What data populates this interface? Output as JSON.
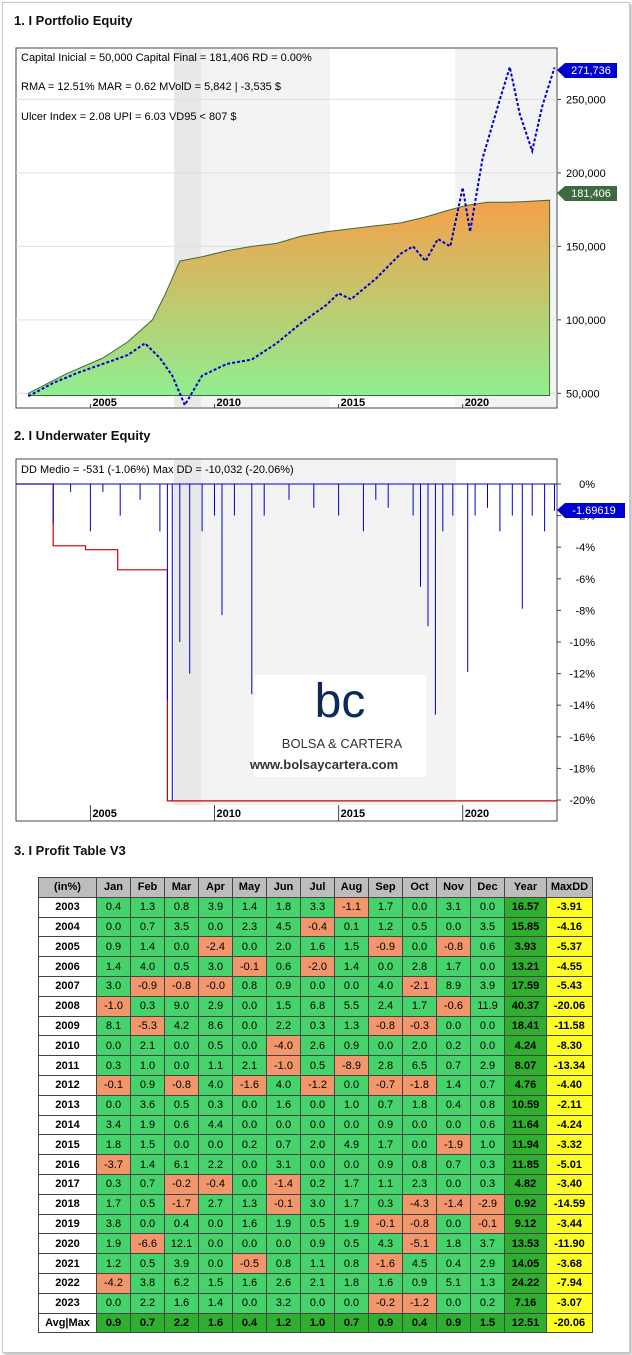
{
  "sections": {
    "equity_title": "1. I Portfolio Equity",
    "underwater_title": "2. I Underwater Equity",
    "table_title": "3. I Profit Table V3"
  },
  "equity_chart": {
    "stats_line1": "Capital Inicial = 50,000  Capital Final = 181,406   RD = 0.00%",
    "stats_line2": "RMA = 12.51%   MAR = 0.62   MVolD = 5,842 | -3,535 $",
    "stats_line3": "Ulcer Index = 2.08   UPI = 6.03   VD95 < 807 $",
    "y_ticks": [
      "250,000",
      "200,000",
      "150,000",
      "100,000",
      "50,000"
    ],
    "x_ticks": [
      "2005",
      "2010",
      "2015",
      "2020"
    ],
    "label_benchmark": "271,736",
    "label_equity": "181,406",
    "colors": {
      "benchmark": "#0000cc",
      "equity_top": "#f5a04a",
      "equity_bottom": "#90ee90",
      "label_equity_bg": "#3e6b3e",
      "label_benchmark_bg": "#0000cc"
    }
  },
  "underwater_chart": {
    "stats": "DD Medio = -531 (-1.06%)          Max DD = -10,032 (-20.06%)",
    "y_ticks": [
      "0%",
      "-2%",
      "-4%",
      "-6%",
      "-8%",
      "-10%",
      "-12%",
      "-14%",
      "-16%",
      "-18%",
      "-20%"
    ],
    "x_ticks": [
      "2005",
      "2010",
      "2015",
      "2020"
    ],
    "current_label": "-1.69619",
    "logo_mark": "bc",
    "logo_name": "BOLSA & CARTERA",
    "logo_url": "www.bolsaycartera.com"
  },
  "chart_data": [
    {
      "type": "line",
      "title": "1. I Portfolio Equity",
      "x_range": [
        2002,
        2023.8
      ],
      "ylim": [
        40000,
        285000
      ],
      "series": [
        {
          "values_note": "",
          "x": [
            2002.5,
            2004,
            2005.5,
            2006.5,
            2007.5,
            2008,
            2008.6,
            2009.5,
            2010.5,
            2011.5,
            2012.5,
            2013.5,
            2014.5,
            2015.5,
            2016.5,
            2017.5,
            2018.5,
            2019.5,
            2020.2,
            2021,
            2021.8,
            2022.5,
            2023.5
          ],
          "values": [
            50000,
            63000,
            74000,
            85000,
            100000,
            117000,
            140000,
            143000,
            147000,
            150000,
            152000,
            157000,
            160000,
            162000,
            164000,
            166000,
            170000,
            175000,
            178000,
            180000,
            180000,
            180500,
            181406
          ]
        },
        {
          "x": [
            2002.5,
            2003.5,
            2004.5,
            2005.5,
            2006.5,
            2007.2,
            2007.8,
            2008.3,
            2008.8,
            2009.5,
            2010.5,
            2011.5,
            2012.5,
            2013.5,
            2014.5,
            2015,
            2015.5,
            2016.5,
            2017.5,
            2018,
            2018.5,
            2019,
            2019.5,
            2020,
            2020.3,
            2020.8,
            2021.5,
            2021.9,
            2022.3,
            2022.8,
            2023.2,
            2023.7
          ],
          "values": [
            48000,
            57000,
            64000,
            70000,
            76000,
            84000,
            74000,
            62000,
            42000,
            62000,
            70000,
            73000,
            84000,
            98000,
            110000,
            118000,
            114000,
            128000,
            145000,
            150000,
            140000,
            155000,
            150000,
            190000,
            160000,
            210000,
            250000,
            272000,
            240000,
            215000,
            245000,
            271736
          ]
        }
      ]
    },
    {
      "type": "area",
      "title": "2. I Underwater Equity",
      "x_range": [
        2002,
        2023.8
      ],
      "ylim": [
        -20,
        0
      ],
      "series": [
        {
          "x": [
            2002.5,
            2003.5,
            2004.2,
            2005,
            2005.5,
            2006.2,
            2007,
            2007.8,
            2008.1,
            2008.3,
            2008.6,
            2009,
            2009.5,
            2010,
            2010.3,
            2010.8,
            2011.5,
            2012,
            2013,
            2014,
            2015,
            2016,
            2016.5,
            2017,
            2018,
            2018.3,
            2018.6,
            2018.9,
            2019.2,
            2019.6,
            2020.2,
            2020.5,
            2021,
            2021.5,
            2022,
            2022.4,
            2022.8,
            2023.3,
            2023.7
          ],
          "values": [
            0,
            -2.5,
            -0.5,
            -3,
            -0.5,
            -2,
            -1,
            -3,
            -13.7,
            -20.06,
            -10,
            -12,
            -3,
            -2,
            -8.3,
            -2,
            -13.3,
            -2,
            -1,
            -1.5,
            -2,
            -3,
            -1,
            -1.5,
            -2,
            -6.5,
            -9,
            -14.6,
            -3,
            -2,
            -11.9,
            -2,
            -1.5,
            -3,
            -2,
            -7.9,
            -2,
            -3,
            -1.69619
          ]
        },
        {
          "x": [
            2002,
            2003.5,
            2003.5,
            2004.8,
            2004.8,
            2006.1,
            2006.1,
            2008.1,
            2008.1,
            2023.8
          ],
          "values": [
            0,
            0,
            -3.91,
            -3.91,
            -4.16,
            -4.16,
            -5.43,
            -5.43,
            -20.06,
            -20.06
          ]
        }
      ]
    },
    {
      "type": "table",
      "title": "3. I Profit Table V3",
      "columns": [
        "(in%)",
        "Jan",
        "Feb",
        "Mar",
        "Apr",
        "May",
        "Jun",
        "Jul",
        "Aug",
        "Sep",
        "Oct",
        "Nov",
        "Dec",
        "Year",
        "MaxDD"
      ],
      "rows": [
        [
          "2003",
          "0.4",
          "1.3",
          "0.8",
          "3.9",
          "1.4",
          "1.8",
          "3.3",
          "-1.1",
          "1.7",
          "0.0",
          "3.1",
          "0.0",
          "16.57",
          "-3.91"
        ],
        [
          "2004",
          "0.0",
          "0.7",
          "3.5",
          "0.0",
          "2.3",
          "4.5",
          "-0.4",
          "0.1",
          "1.2",
          "0.5",
          "0.0",
          "3.5",
          "15.85",
          "-4.16"
        ],
        [
          "2005",
          "0.9",
          "1.4",
          "0.0",
          "-2.4",
          "0.0",
          "2.0",
          "1.6",
          "1.5",
          "-0.9",
          "0.0",
          "-0.8",
          "0.6",
          "3.93",
          "-5.37"
        ],
        [
          "2006",
          "1.4",
          "4.0",
          "0.5",
          "3.0",
          "-0.1",
          "0.6",
          "-2.0",
          "1.4",
          "0.0",
          "2.8",
          "1.7",
          "0.0",
          "13.21",
          "-4.55"
        ],
        [
          "2007",
          "3.0",
          "-0.9",
          "-0.8",
          "-0.0",
          "0.8",
          "0.9",
          "0.0",
          "0.0",
          "4.0",
          "-2.1",
          "8.9",
          "3.9",
          "17.59",
          "-5.43"
        ],
        [
          "2008",
          "-1.0",
          "0.3",
          "9.0",
          "2.9",
          "0.0",
          "1.5",
          "6.8",
          "5.5",
          "2.4",
          "1.7",
          "-0.6",
          "11.9",
          "40.37",
          "-20.06"
        ],
        [
          "2009",
          "8.1",
          "-5.3",
          "4.2",
          "8.6",
          "0.0",
          "2.2",
          "0.3",
          "1.3",
          "-0.8",
          "-0.3",
          "0.0",
          "0.0",
          "18.41",
          "-11.58"
        ],
        [
          "2010",
          "0.0",
          "2.1",
          "0.0",
          "0.5",
          "0.0",
          "-4.0",
          "2.6",
          "0.9",
          "0.0",
          "2.0",
          "0.2",
          "0.0",
          "4.24",
          "-8.30"
        ],
        [
          "2011",
          "0.3",
          "1.0",
          "0.0",
          "1.1",
          "2.1",
          "-1.0",
          "0.5",
          "-8.9",
          "2.8",
          "6.5",
          "0.7",
          "2.9",
          "8.07",
          "-13.34"
        ],
        [
          "2012",
          "-0.1",
          "0.9",
          "-0.8",
          "4.0",
          "-1.6",
          "4.0",
          "-1.2",
          "0.0",
          "-0.7",
          "-1.8",
          "1.4",
          "0.7",
          "4.76",
          "-4.40"
        ],
        [
          "2013",
          "0.0",
          "3.6",
          "0.5",
          "0.3",
          "0.0",
          "1.6",
          "0.0",
          "1.0",
          "0.7",
          "1.8",
          "0.4",
          "0.8",
          "10.59",
          "-2.11"
        ],
        [
          "2014",
          "3.4",
          "1.9",
          "0.6",
          "4.4",
          "0.0",
          "0.0",
          "0.0",
          "0.0",
          "0.9",
          "0.0",
          "0.0",
          "0.6",
          "11.64",
          "-4.24"
        ],
        [
          "2015",
          "1.8",
          "1.5",
          "0.0",
          "0.0",
          "0.2",
          "0.7",
          "2.0",
          "4.9",
          "1.7",
          "0.0",
          "-1.9",
          "1.0",
          "11.94",
          "-3.32"
        ],
        [
          "2016",
          "-3.7",
          "1.4",
          "6.1",
          "2.2",
          "0.0",
          "3.1",
          "0.0",
          "0.0",
          "0.9",
          "0.8",
          "0.7",
          "0.3",
          "11.85",
          "-5.01"
        ],
        [
          "2017",
          "0.3",
          "0.7",
          "-0.2",
          "-0.4",
          "0.0",
          "-1.4",
          "0.2",
          "1.7",
          "1.1",
          "2.3",
          "0.0",
          "0.3",
          "4.82",
          "-3.40"
        ],
        [
          "2018",
          "1.7",
          "0.5",
          "-1.7",
          "2.7",
          "1.3",
          "-0.1",
          "3.0",
          "1.7",
          "0.3",
          "-4.3",
          "-1.4",
          "-2.9",
          "0.92",
          "-14.59"
        ],
        [
          "2019",
          "3.8",
          "0.0",
          "0.4",
          "0.0",
          "1.6",
          "1.9",
          "0.5",
          "1.9",
          "-0.1",
          "-0.8",
          "0.0",
          "-0.1",
          "9.12",
          "-3.44"
        ],
        [
          "2020",
          "1.9",
          "-6.6",
          "12.1",
          "0.0",
          "0.0",
          "0.0",
          "0.9",
          "0.5",
          "4.3",
          "-5.1",
          "1.8",
          "3.7",
          "13.53",
          "-11.90"
        ],
        [
          "2021",
          "1.2",
          "0.5",
          "3.9",
          "0.0",
          "-0.5",
          "0.8",
          "1.1",
          "0.8",
          "-1.6",
          "4.5",
          "0.4",
          "2.9",
          "14.05",
          "-3.68"
        ],
        [
          "2022",
          "-4.2",
          "3.8",
          "6.2",
          "1.5",
          "1.6",
          "2.6",
          "2.1",
          "1.8",
          "1.6",
          "0.9",
          "5.1",
          "1.3",
          "24.22",
          "-7.94"
        ],
        [
          "2023",
          "0.0",
          "2.2",
          "1.6",
          "1.4",
          "0.0",
          "3.2",
          "0.0",
          "0.0",
          "-0.2",
          "-1.2",
          "0.0",
          "0.2",
          "7.16",
          "-3.07"
        ]
      ],
      "footer": [
        "Avg|Max",
        "0.9",
        "0.7",
        "2.2",
        "1.6",
        "0.4",
        "1.2",
        "1.0",
        "0.7",
        "0.9",
        "0.4",
        "0.9",
        "1.5",
        "12.51",
        "-20.06"
      ]
    }
  ]
}
